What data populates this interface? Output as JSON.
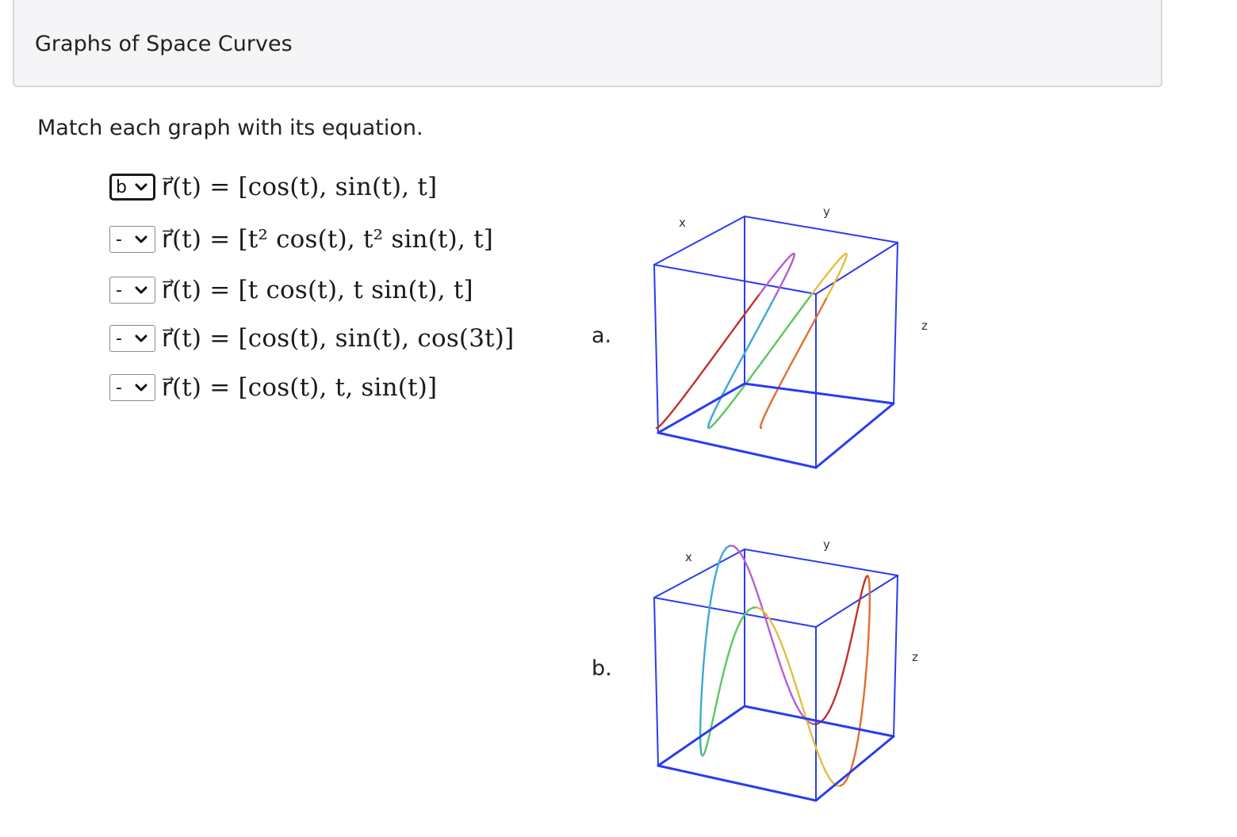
{
  "header": {
    "title": "Graphs of Space Curves"
  },
  "instructions": "Match each graph with its equation.",
  "equations": [
    {
      "selected": "b",
      "text": "r⃗(t) = [cos(t), sin(t), t]"
    },
    {
      "selected": "-",
      "text": "r⃗(t) = [t² cos(t), t² sin(t), t]"
    },
    {
      "selected": "-",
      "text": "r⃗(t) = [t cos(t), t sin(t), t]"
    },
    {
      "selected": "-",
      "text": "r⃗(t) = [cos(t), sin(t), cos(3t)]"
    },
    {
      "selected": "-",
      "text": "r⃗(t) = [cos(t), t, sin(t)]"
    }
  ],
  "graphs": [
    {
      "label": "a.",
      "axis_x": "x",
      "axis_y": "y",
      "axis_z": "z",
      "curve": "cos(t), sin(t), t"
    },
    {
      "label": "b.",
      "axis_x": "x",
      "axis_y": "y",
      "axis_z": "z",
      "curve": "cos(t), sin(t), cos(3t)"
    }
  ],
  "colors": {
    "box": "#2a3cf0",
    "rainbow": [
      "#c0342c",
      "#b85fd0",
      "#3fa8d6",
      "#5cc85c",
      "#e0c040",
      "#e07030"
    ]
  }
}
